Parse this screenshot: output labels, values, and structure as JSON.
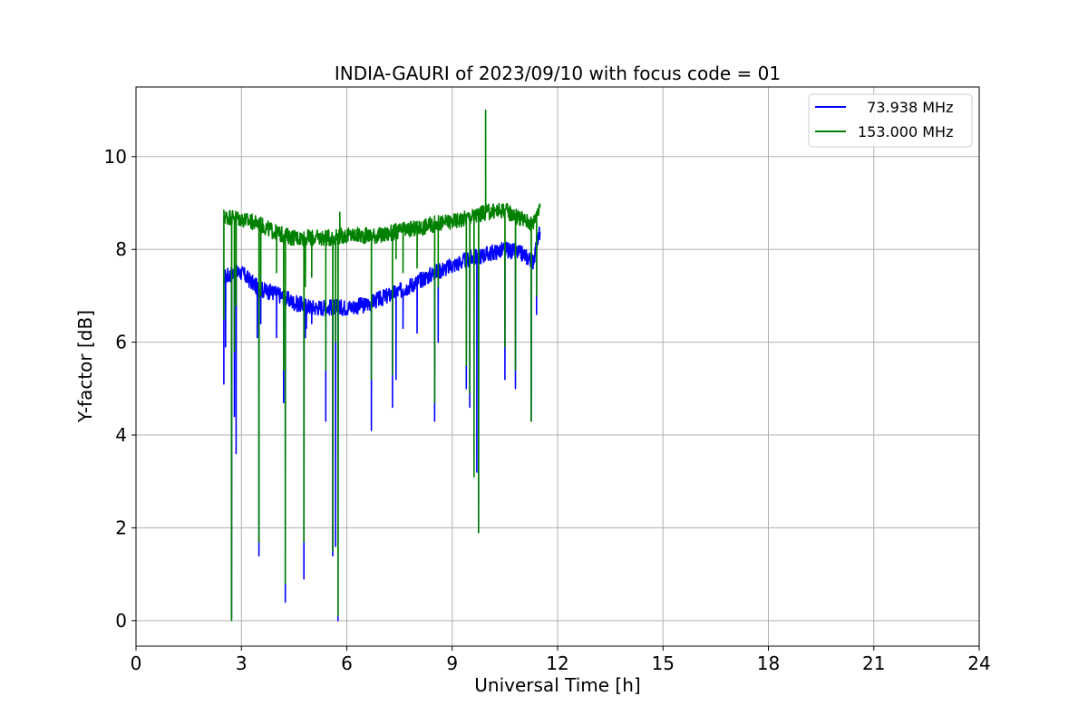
{
  "chart_data": {
    "type": "line",
    "title": "INDIA-GAURI of 2023/09/10 with focus code = 01",
    "xlabel": "Universal Time [h]",
    "ylabel": "Y-factor [dB]",
    "xlim": [
      0,
      24
    ],
    "ylim": [
      -0.55,
      11.5
    ],
    "xticks": [
      0,
      3,
      6,
      9,
      12,
      15,
      18,
      21,
      24
    ],
    "xtick_labels": [
      "0",
      "3",
      "6",
      "9",
      "12",
      "15",
      "18",
      "21",
      "24"
    ],
    "yticks": [
      0,
      2,
      4,
      6,
      8,
      10
    ],
    "ytick_labels": [
      "0",
      "2",
      "4",
      "6",
      "8",
      "10"
    ],
    "grid": true,
    "legend_position": "top-right",
    "series": [
      {
        "name": "  73.938 MHz",
        "color": "#0000ff",
        "baseline": [
          [
            2.5,
            7.4
          ],
          [
            2.8,
            7.5
          ],
          [
            3.0,
            7.5
          ],
          [
            3.5,
            7.15
          ],
          [
            4.0,
            7.05
          ],
          [
            4.5,
            6.85
          ],
          [
            5.0,
            6.75
          ],
          [
            5.5,
            6.75
          ],
          [
            6.0,
            6.75
          ],
          [
            6.5,
            6.8
          ],
          [
            7.0,
            6.95
          ],
          [
            7.5,
            7.1
          ],
          [
            8.0,
            7.3
          ],
          [
            8.5,
            7.5
          ],
          [
            9.0,
            7.65
          ],
          [
            9.5,
            7.8
          ],
          [
            10.0,
            7.9
          ],
          [
            10.5,
            8.0
          ],
          [
            11.0,
            7.9
          ],
          [
            11.3,
            7.75
          ],
          [
            11.5,
            8.4
          ]
        ],
        "spikes": [
          [
            2.5,
            5.1
          ],
          [
            2.55,
            5.9
          ],
          [
            2.72,
            0.05
          ],
          [
            2.8,
            4.4
          ],
          [
            2.85,
            3.6
          ],
          [
            3.45,
            6.1
          ],
          [
            3.5,
            1.4
          ],
          [
            3.55,
            6.4
          ],
          [
            4.0,
            6.1
          ],
          [
            4.2,
            4.7
          ],
          [
            4.25,
            0.4
          ],
          [
            4.78,
            0.9
          ],
          [
            4.82,
            6.1
          ],
          [
            4.85,
            6.3
          ],
          [
            5.0,
            6.4
          ],
          [
            5.4,
            4.3
          ],
          [
            5.6,
            1.4
          ],
          [
            5.68,
            1.6
          ],
          [
            5.75,
            0.0
          ],
          [
            6.7,
            4.1
          ],
          [
            7.3,
            4.6
          ],
          [
            7.4,
            5.2
          ],
          [
            7.6,
            6.3
          ],
          [
            8.0,
            6.2
          ],
          [
            8.5,
            4.3
          ],
          [
            8.6,
            6.0
          ],
          [
            9.4,
            5.0
          ],
          [
            9.5,
            4.6
          ],
          [
            9.7,
            3.2
          ],
          [
            9.75,
            1.9
          ],
          [
            10.5,
            5.2
          ],
          [
            10.8,
            5.0
          ],
          [
            11.25,
            4.3
          ],
          [
            11.4,
            6.6
          ]
        ]
      },
      {
        "name": "153.000 MHz",
        "color": "#008000",
        "baseline": [
          [
            2.5,
            8.7
          ],
          [
            2.8,
            8.7
          ],
          [
            3.0,
            8.65
          ],
          [
            3.5,
            8.55
          ],
          [
            4.0,
            8.35
          ],
          [
            4.5,
            8.25
          ],
          [
            5.0,
            8.25
          ],
          [
            5.5,
            8.25
          ],
          [
            6.0,
            8.3
          ],
          [
            6.5,
            8.3
          ],
          [
            7.0,
            8.3
          ],
          [
            7.5,
            8.4
          ],
          [
            8.0,
            8.45
          ],
          [
            8.5,
            8.55
          ],
          [
            9.0,
            8.6
          ],
          [
            9.5,
            8.7
          ],
          [
            10.0,
            8.8
          ],
          [
            10.5,
            8.85
          ],
          [
            11.0,
            8.65
          ],
          [
            11.3,
            8.55
          ],
          [
            11.5,
            9.0
          ]
        ],
        "spikes": [
          [
            2.5,
            6.5
          ],
          [
            2.72,
            0.0
          ],
          [
            2.8,
            5.8
          ],
          [
            2.85,
            6.8
          ],
          [
            3.5,
            1.7
          ],
          [
            3.55,
            7.0
          ],
          [
            4.0,
            7.5
          ],
          [
            4.2,
            5.4
          ],
          [
            4.25,
            0.8
          ],
          [
            4.78,
            1.7
          ],
          [
            4.82,
            7.2
          ],
          [
            5.0,
            7.4
          ],
          [
            5.4,
            5.4
          ],
          [
            5.6,
            1.5
          ],
          [
            5.68,
            6.0
          ],
          [
            5.75,
            0.1
          ],
          [
            5.8,
            8.8
          ],
          [
            6.7,
            5.2
          ],
          [
            7.3,
            5.3
          ],
          [
            7.4,
            7.8
          ],
          [
            7.6,
            7.5
          ],
          [
            8.0,
            7.6
          ],
          [
            8.5,
            4.7
          ],
          [
            8.6,
            7.2
          ],
          [
            9.4,
            5.5
          ],
          [
            9.5,
            4.9
          ],
          [
            9.62,
            3.1
          ],
          [
            9.75,
            1.9
          ],
          [
            9.95,
            11.0
          ],
          [
            10.5,
            5.9
          ],
          [
            10.8,
            5.4
          ],
          [
            11.25,
            4.3
          ],
          [
            11.4,
            7.0
          ]
        ]
      }
    ]
  }
}
